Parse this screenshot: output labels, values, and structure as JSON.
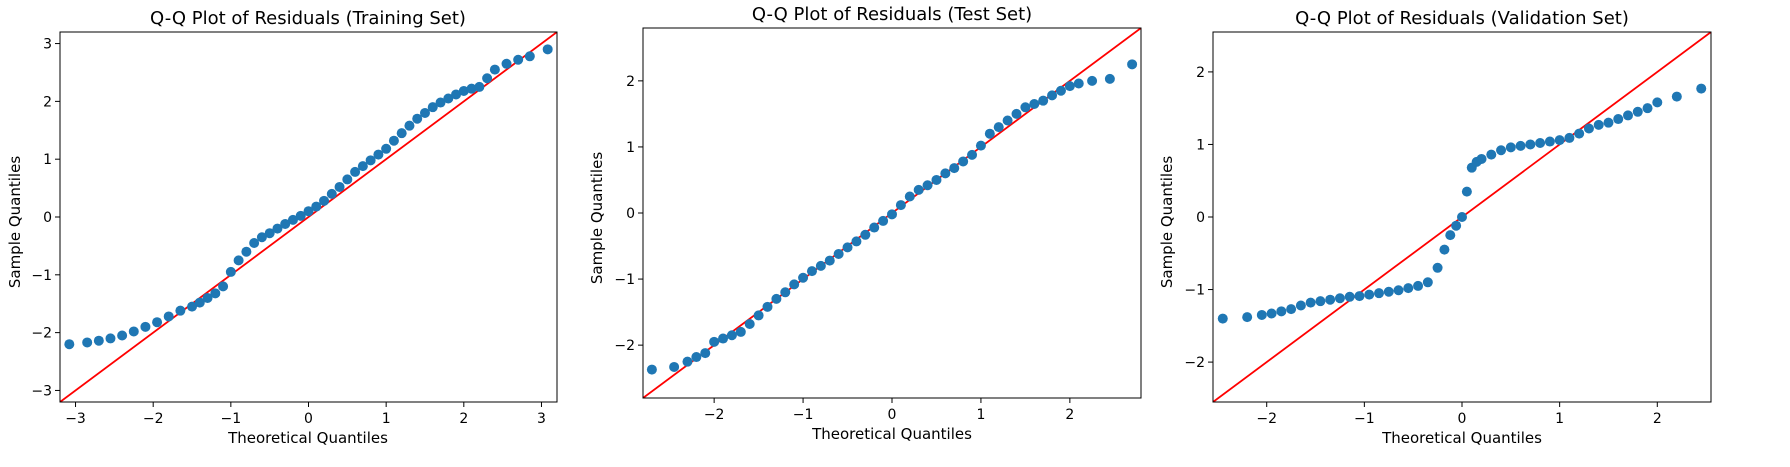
{
  "colors": {
    "points": "#1f77b4",
    "reference_line": "#ff0000",
    "axes": "#000000",
    "background": "#ffffff"
  },
  "chart_data": [
    {
      "type": "scatter",
      "title": "Q-Q Plot of Residuals (Training Set)",
      "xlabel": "Theoretical Quantiles",
      "ylabel": "Sample Quantiles",
      "xlim": [
        -3.2,
        3.2
      ],
      "ylim": [
        -3.2,
        3.2
      ],
      "xticks": [
        -3,
        -2,
        -1,
        0,
        1,
        2,
        3
      ],
      "yticks": [
        -3,
        -2,
        -1,
        0,
        1,
        2,
        3
      ],
      "xtick_labels": [
        "−3",
        "−2",
        "−1",
        "0",
        "1",
        "2",
        "3"
      ],
      "ytick_labels": [
        "−3",
        "−2",
        "−1",
        "0",
        "1",
        "2",
        "3"
      ],
      "reference_line": {
        "slope": 1,
        "intercept": 0
      },
      "grid": false,
      "x": [
        -3.08,
        -2.85,
        -2.7,
        -2.55,
        -2.4,
        -2.25,
        -2.1,
        -1.95,
        -1.8,
        -1.65,
        -1.5,
        -1.4,
        -1.3,
        -1.2,
        -1.1,
        -1.0,
        -0.9,
        -0.8,
        -0.7,
        -0.6,
        -0.5,
        -0.4,
        -0.3,
        -0.2,
        -0.1,
        0.0,
        0.1,
        0.2,
        0.3,
        0.4,
        0.5,
        0.6,
        0.7,
        0.8,
        0.9,
        1.0,
        1.1,
        1.2,
        1.3,
        1.4,
        1.5,
        1.6,
        1.7,
        1.8,
        1.9,
        2.0,
        2.1,
        2.2,
        2.3,
        2.4,
        2.55,
        2.7,
        2.85,
        3.08
      ],
      "y": [
        -2.2,
        -2.17,
        -2.14,
        -2.1,
        -2.05,
        -1.98,
        -1.9,
        -1.82,
        -1.72,
        -1.62,
        -1.55,
        -1.48,
        -1.4,
        -1.32,
        -1.2,
        -0.95,
        -0.75,
        -0.6,
        -0.45,
        -0.35,
        -0.28,
        -0.2,
        -0.12,
        -0.05,
        0.02,
        0.1,
        0.18,
        0.28,
        0.4,
        0.52,
        0.65,
        0.78,
        0.88,
        0.98,
        1.08,
        1.18,
        1.32,
        1.45,
        1.58,
        1.7,
        1.8,
        1.9,
        1.98,
        2.05,
        2.12,
        2.18,
        2.22,
        2.25,
        2.4,
        2.55,
        2.65,
        2.72,
        2.78,
        2.9
      ]
    },
    {
      "type": "scatter",
      "title": "Q-Q Plot of Residuals (Test Set)",
      "xlabel": "Theoretical Quantiles",
      "ylabel": "Sample Quantiles",
      "xlim": [
        -2.8,
        2.8
      ],
      "ylim": [
        -2.8,
        2.8
      ],
      "xticks": [
        -2,
        -1,
        0,
        1,
        2
      ],
      "yticks": [
        -2,
        -1,
        0,
        1,
        2
      ],
      "xtick_labels": [
        "−2",
        "−1",
        "0",
        "1",
        "2"
      ],
      "ytick_labels": [
        "−2",
        "−1",
        "0",
        "1",
        "2"
      ],
      "reference_line": {
        "slope": 1,
        "intercept": 0
      },
      "grid": false,
      "x": [
        -2.7,
        -2.45,
        -2.3,
        -2.2,
        -2.1,
        -2.0,
        -1.9,
        -1.8,
        -1.7,
        -1.6,
        -1.5,
        -1.4,
        -1.3,
        -1.2,
        -1.1,
        -1.0,
        -0.9,
        -0.8,
        -0.7,
        -0.6,
        -0.5,
        -0.4,
        -0.3,
        -0.2,
        -0.1,
        0.0,
        0.1,
        0.2,
        0.3,
        0.4,
        0.5,
        0.6,
        0.7,
        0.8,
        0.9,
        1.0,
        1.1,
        1.2,
        1.3,
        1.4,
        1.5,
        1.6,
        1.7,
        1.8,
        1.9,
        2.0,
        2.1,
        2.25,
        2.45,
        2.7
      ],
      "y": [
        -2.37,
        -2.33,
        -2.25,
        -2.18,
        -2.12,
        -1.95,
        -1.9,
        -1.85,
        -1.8,
        -1.68,
        -1.55,
        -1.42,
        -1.3,
        -1.2,
        -1.08,
        -0.98,
        -0.88,
        -0.8,
        -0.72,
        -0.62,
        -0.52,
        -0.43,
        -0.33,
        -0.22,
        -0.12,
        -0.02,
        0.12,
        0.25,
        0.35,
        0.42,
        0.5,
        0.6,
        0.68,
        0.78,
        0.88,
        1.02,
        1.2,
        1.3,
        1.4,
        1.5,
        1.6,
        1.65,
        1.7,
        1.78,
        1.85,
        1.92,
        1.96,
        2.0,
        2.03,
        2.25
      ]
    },
    {
      "type": "scatter",
      "title": "Q-Q Plot of Residuals (Validation Set)",
      "xlabel": "Theoretical Quantiles",
      "ylabel": "Sample Quantiles",
      "xlim": [
        -2.55,
        2.55
      ],
      "ylim": [
        -2.55,
        2.55
      ],
      "xticks": [
        -2,
        -1,
        0,
        1,
        2
      ],
      "yticks": [
        -2,
        -1,
        0,
        1,
        2
      ],
      "xtick_labels": [
        "−2",
        "−1",
        "0",
        "1",
        "2"
      ],
      "ytick_labels": [
        "−2",
        "−1",
        "0",
        "1",
        "2"
      ],
      "reference_line": {
        "slope": 1,
        "intercept": 0
      },
      "grid": false,
      "x": [
        -2.45,
        -2.2,
        -2.05,
        -1.95,
        -1.85,
        -1.75,
        -1.65,
        -1.55,
        -1.45,
        -1.35,
        -1.25,
        -1.15,
        -1.05,
        -0.95,
        -0.85,
        -0.75,
        -0.65,
        -0.55,
        -0.45,
        -0.35,
        -0.25,
        -0.18,
        -0.12,
        -0.06,
        0.0,
        0.05,
        0.1,
        0.15,
        0.2,
        0.3,
        0.4,
        0.5,
        0.6,
        0.7,
        0.8,
        0.9,
        1.0,
        1.1,
        1.2,
        1.3,
        1.4,
        1.5,
        1.6,
        1.7,
        1.8,
        1.9,
        2.0,
        2.2,
        2.45
      ],
      "y": [
        -1.4,
        -1.38,
        -1.35,
        -1.33,
        -1.3,
        -1.27,
        -1.22,
        -1.18,
        -1.16,
        -1.14,
        -1.12,
        -1.1,
        -1.09,
        -1.07,
        -1.05,
        -1.03,
        -1.01,
        -0.98,
        -0.95,
        -0.9,
        -0.7,
        -0.45,
        -0.25,
        -0.12,
        0.0,
        0.35,
        0.68,
        0.76,
        0.8,
        0.86,
        0.92,
        0.96,
        0.98,
        1.0,
        1.02,
        1.04,
        1.06,
        1.09,
        1.15,
        1.22,
        1.27,
        1.3,
        1.35,
        1.4,
        1.45,
        1.5,
        1.58,
        1.66,
        1.77
      ]
    }
  ]
}
